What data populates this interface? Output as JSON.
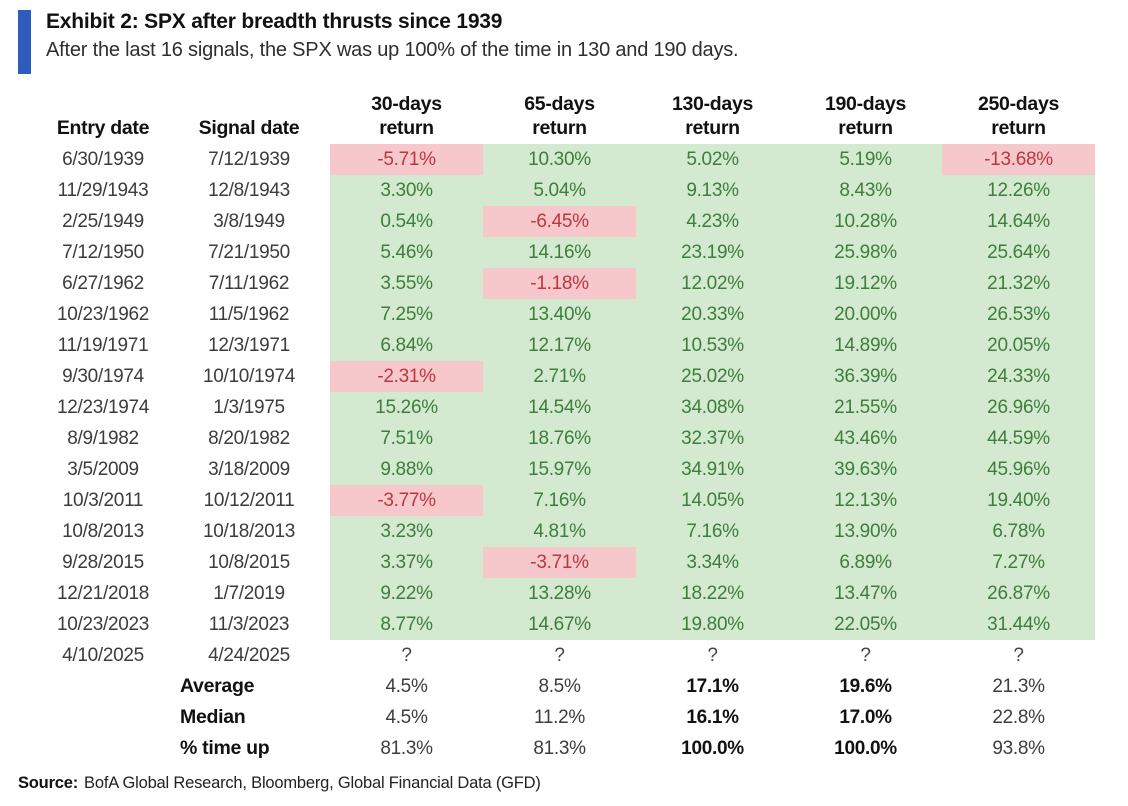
{
  "colors": {
    "accent_bar": "#2d5cbe",
    "positive_bg": "#d3ead0",
    "negative_bg": "#f6c8cc",
    "positive_text": "#3e7d3c",
    "negative_text": "#ba3740"
  },
  "chart_data": {
    "type": "table",
    "title": "Exhibit 2: SPX after breadth thrusts since 1939",
    "subtitle": "After the last 16 signals, the SPX was up 100% of the time in 130 and 190 days.",
    "columns": [
      [
        "Entry date"
      ],
      [
        "Signal date"
      ],
      [
        "30-days",
        "return"
      ],
      [
        "65-days",
        "return"
      ],
      [
        "130-days",
        "return"
      ],
      [
        "190-days",
        "return"
      ],
      [
        "250-days",
        "return"
      ]
    ],
    "rows": [
      {
        "entry_date": "6/30/1939",
        "signal_date": "7/12/1939",
        "returns": [
          "-5.71%",
          "10.30%",
          "5.02%",
          "5.19%",
          "-13.68%"
        ]
      },
      {
        "entry_date": "11/29/1943",
        "signal_date": "12/8/1943",
        "returns": [
          "3.30%",
          "5.04%",
          "9.13%",
          "8.43%",
          "12.26%"
        ]
      },
      {
        "entry_date": "2/25/1949",
        "signal_date": "3/8/1949",
        "returns": [
          "0.54%",
          "-6.45%",
          "4.23%",
          "10.28%",
          "14.64%"
        ]
      },
      {
        "entry_date": "7/12/1950",
        "signal_date": "7/21/1950",
        "returns": [
          "5.46%",
          "14.16%",
          "23.19%",
          "25.98%",
          "25.64%"
        ]
      },
      {
        "entry_date": "6/27/1962",
        "signal_date": "7/11/1962",
        "returns": [
          "3.55%",
          "-1.18%",
          "12.02%",
          "19.12%",
          "21.32%"
        ]
      },
      {
        "entry_date": "10/23/1962",
        "signal_date": "11/5/1962",
        "returns": [
          "7.25%",
          "13.40%",
          "20.33%",
          "20.00%",
          "26.53%"
        ]
      },
      {
        "entry_date": "11/19/1971",
        "signal_date": "12/3/1971",
        "returns": [
          "6.84%",
          "12.17%",
          "10.53%",
          "14.89%",
          "20.05%"
        ]
      },
      {
        "entry_date": "9/30/1974",
        "signal_date": "10/10/1974",
        "returns": [
          "-2.31%",
          "2.71%",
          "25.02%",
          "36.39%",
          "24.33%"
        ]
      },
      {
        "entry_date": "12/23/1974",
        "signal_date": "1/3/1975",
        "returns": [
          "15.26%",
          "14.54%",
          "34.08%",
          "21.55%",
          "26.96%"
        ]
      },
      {
        "entry_date": "8/9/1982",
        "signal_date": "8/20/1982",
        "returns": [
          "7.51%",
          "18.76%",
          "32.37%",
          "43.46%",
          "44.59%"
        ]
      },
      {
        "entry_date": "3/5/2009",
        "signal_date": "3/18/2009",
        "returns": [
          "9.88%",
          "15.97%",
          "34.91%",
          "39.63%",
          "45.96%"
        ]
      },
      {
        "entry_date": "10/3/2011",
        "signal_date": "10/12/2011",
        "returns": [
          "-3.77%",
          "7.16%",
          "14.05%",
          "12.13%",
          "19.40%"
        ]
      },
      {
        "entry_date": "10/8/2013",
        "signal_date": "10/18/2013",
        "returns": [
          "3.23%",
          "4.81%",
          "7.16%",
          "13.90%",
          "6.78%"
        ]
      },
      {
        "entry_date": "9/28/2015",
        "signal_date": "10/8/2015",
        "returns": [
          "3.37%",
          "-3.71%",
          "3.34%",
          "6.89%",
          "7.27%"
        ]
      },
      {
        "entry_date": "12/21/2018",
        "signal_date": "1/7/2019",
        "returns": [
          "9.22%",
          "13.28%",
          "18.22%",
          "13.47%",
          "26.87%"
        ]
      },
      {
        "entry_date": "10/23/2023",
        "signal_date": "11/3/2023",
        "returns": [
          "8.77%",
          "14.67%",
          "19.80%",
          "22.05%",
          "31.44%"
        ]
      },
      {
        "entry_date": "4/10/2025",
        "signal_date": "4/24/2025",
        "returns": [
          "?",
          "?",
          "?",
          "?",
          "?"
        ]
      }
    ],
    "summary": [
      {
        "label": "Average",
        "values": [
          "4.5%",
          "8.5%",
          "17.1%",
          "19.6%",
          "21.3%"
        ]
      },
      {
        "label": "Median",
        "values": [
          "4.5%",
          "11.2%",
          "16.1%",
          "17.0%",
          "22.8%"
        ]
      },
      {
        "label": "% time up",
        "values": [
          "81.3%",
          "81.3%",
          "100.0%",
          "100.0%",
          "93.8%"
        ]
      }
    ],
    "summary_bold_cols": [
      2,
      3
    ]
  },
  "source": {
    "label": "Source:",
    "text": "BofA Global Research, Bloomberg, Global Financial Data (GFD)"
  }
}
